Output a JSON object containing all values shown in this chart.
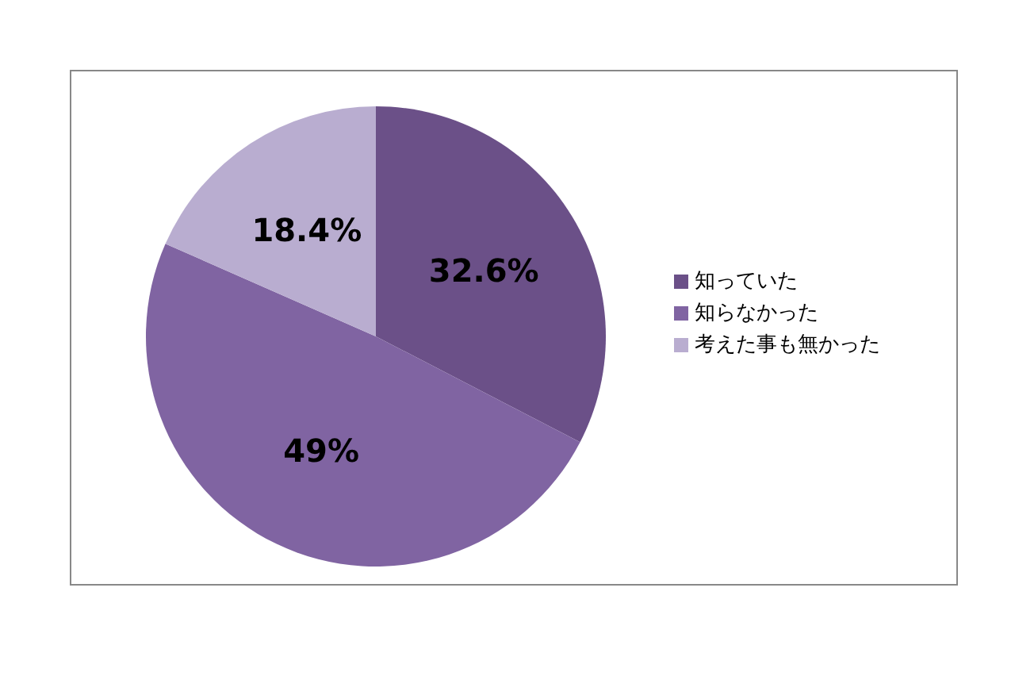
{
  "chart_data": {
    "type": "pie",
    "categories": [
      "知っていた",
      "知らなかった",
      "考えた事も無かった"
    ],
    "values": [
      32.6,
      49,
      18.4
    ],
    "colors": [
      "#6b5088",
      "#8064a2",
      "#b9add0"
    ],
    "value_labels": [
      "32.6%",
      "49%",
      "18.4%"
    ],
    "legend": "right"
  }
}
